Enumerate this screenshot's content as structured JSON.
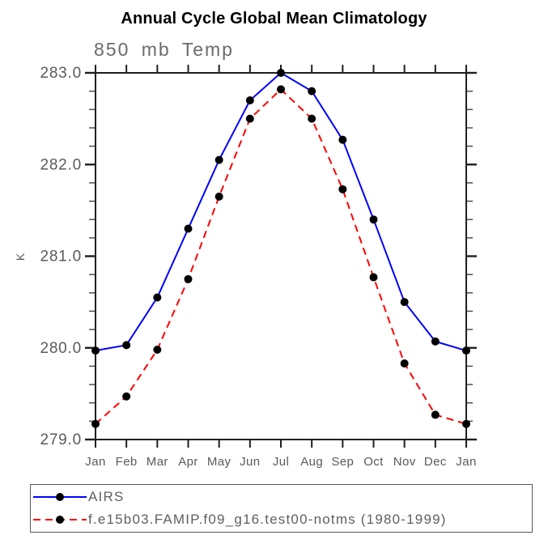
{
  "window": {
    "background": "#ffffff"
  },
  "chart_data": {
    "type": "line",
    "title": "Annual Cycle Global Mean Climatology",
    "subtitle": "850 mb Temp",
    "ylabel": "K",
    "xlabel": "",
    "x_tick_labels": [
      "Jan",
      "Feb",
      "Mar",
      "Apr",
      "May",
      "Jun",
      "Jul",
      "Aug",
      "Sep",
      "Oct",
      "Nov",
      "Dec",
      "Jan"
    ],
    "y_tick_labels": [
      "279.0",
      "280.0",
      "281.0",
      "282.0",
      "283.0"
    ],
    "ylim": [
      279.0,
      283.0
    ],
    "y_major_step": 1.0,
    "y_minor_step": 0.2,
    "grid": false,
    "tick_direction": "out",
    "legend_position": "bottom-left-box",
    "series": [
      {
        "name": "AIRS",
        "color": "#0000ff",
        "line_style": "solid",
        "marker": "circle",
        "marker_color": "#000000",
        "values": [
          279.97,
          280.03,
          280.55,
          281.3,
          282.05,
          282.7,
          283.0,
          282.8,
          282.27,
          281.4,
          280.5,
          280.07,
          279.97
        ]
      },
      {
        "name": "f.e15b03.FAMIP.f09_g16.test00-notms (1980-1999)",
        "color": "#ff0000",
        "line_style": "dashed",
        "marker": "circle",
        "marker_color": "#000000",
        "values": [
          279.17,
          279.47,
          279.98,
          280.75,
          281.65,
          282.5,
          282.82,
          282.5,
          281.73,
          280.77,
          279.83,
          279.27,
          279.17
        ]
      }
    ]
  }
}
